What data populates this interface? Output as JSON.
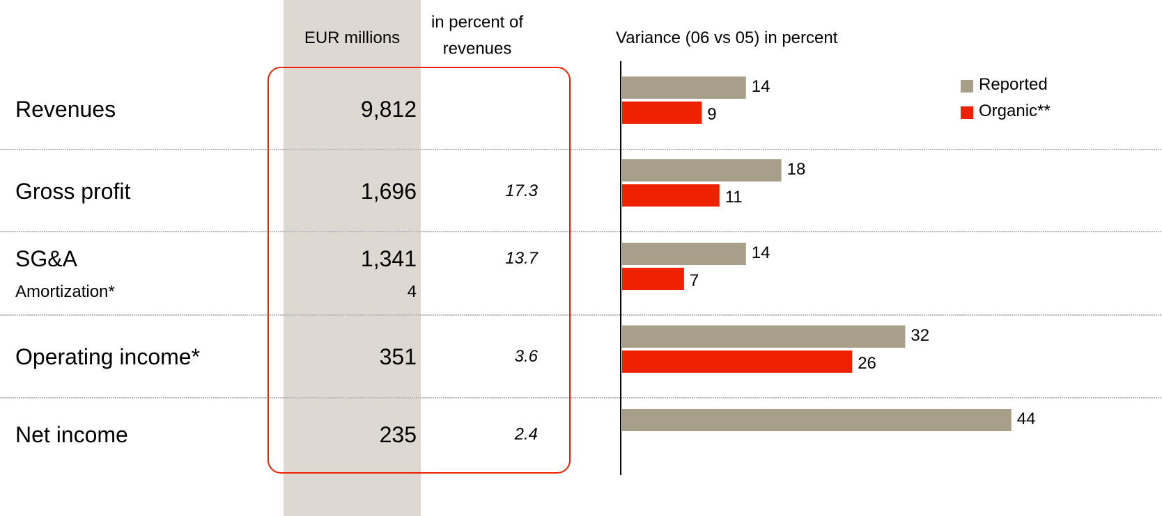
{
  "table": {
    "headers": [
      "EUR millions",
      "in percent of revenues"
    ],
    "rows": [
      {
        "label": "Revenues",
        "value": "9,812"
      },
      {
        "label": "Gross profit",
        "value": "1,696",
        "percent": "17.3"
      },
      {
        "label": "SG&A",
        "value": "1,341",
        "percent": "13.7"
      },
      {
        "label": "Amortization*",
        "value": "4"
      },
      {
        "label": "Operating income*",
        "value": "351",
        "percent": "3.6"
      },
      {
        "label": "Net income",
        "value": "235",
        "percent": "2.4"
      }
    ]
  },
  "chart_data": {
    "type": "bar",
    "orientation": "horizontal",
    "title": "Variance (06 vs 05) in percent",
    "series": [
      {
        "name": "Reported",
        "color": "#a89f8b",
        "values": [
          14,
          18,
          14,
          32,
          44
        ]
      },
      {
        "name": "Organic**",
        "color": "#ee2200",
        "values": [
          9,
          11,
          7,
          26,
          null
        ]
      }
    ],
    "xlim": [
      0,
      60
    ],
    "legend": "top-right"
  }
}
